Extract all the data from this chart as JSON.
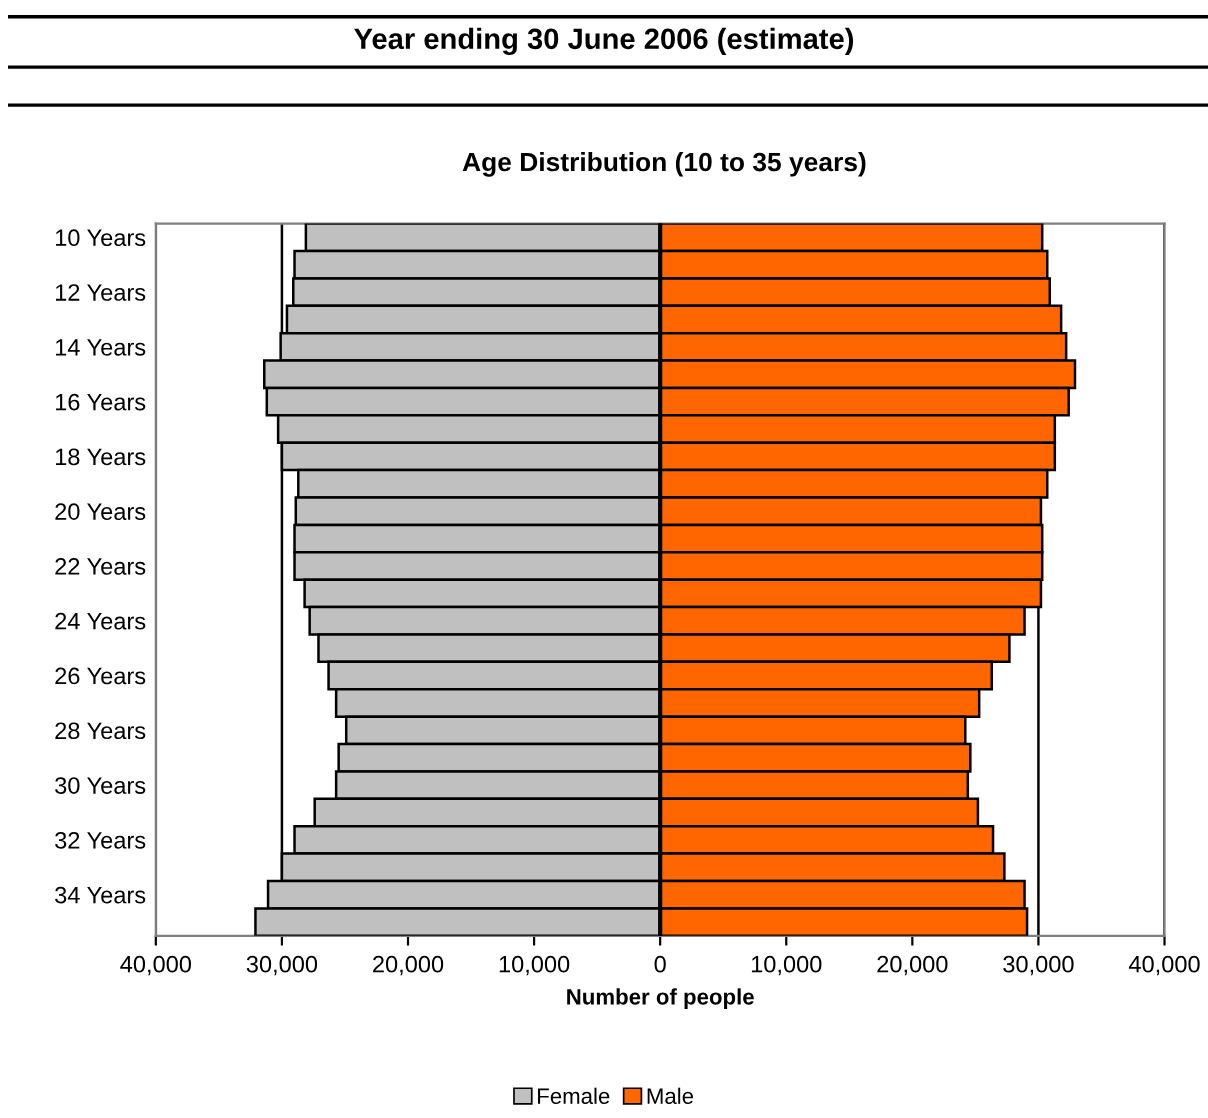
{
  "chart_data": {
    "type": "bar",
    "orientation": "horizontal",
    "stacked": true,
    "title": "Year ending 30 June 2006 (estimate)",
    "subtitle": "Age Distribution (10 to 35 years)",
    "xlabel": "Number of people",
    "categories": [
      "10 Years",
      null,
      "12 Years",
      null,
      "14 Years",
      null,
      "16 Years",
      null,
      "18 Years",
      null,
      "20 Years",
      null,
      "22 Years",
      null,
      "24 Years",
      null,
      "26 Years",
      null,
      "28 Years",
      null,
      "30 Years",
      null,
      "32 Years",
      null,
      "34 Years",
      null
    ],
    "series": [
      {
        "name": "Female",
        "color": "#c0c0c0",
        "values": [
          -28100,
          -29000,
          -29100,
          -29600,
          -30100,
          -31400,
          -31200,
          -30300,
          -30000,
          -28700,
          -28900,
          -29000,
          -29000,
          -28200,
          -27800,
          -27100,
          -26300,
          -25700,
          -24900,
          -25500,
          -25700,
          -27400,
          -29000,
          -30000,
          -31100,
          -32100
        ]
      },
      {
        "name": "Male",
        "color": "#ff6600",
        "values": [
          30300,
          30700,
          30900,
          31800,
          32200,
          32900,
          32400,
          31300,
          31300,
          30700,
          30200,
          30300,
          30300,
          30200,
          28900,
          27700,
          26300,
          25300,
          24200,
          24600,
          24400,
          25200,
          26400,
          27300,
          28900,
          29100
        ]
      }
    ],
    "xlim": [
      -40000,
      40000
    ],
    "xticks": [
      {
        "value": -40000,
        "label": "40,000"
      },
      {
        "value": -30000,
        "label": "30,000"
      },
      {
        "value": -20000,
        "label": "20,000"
      },
      {
        "value": -10000,
        "label": "10,000"
      },
      0,
      {
        "value": 10000,
        "label": "10,000"
      },
      {
        "value": 20000,
        "label": "20,000"
      },
      {
        "value": 30000,
        "label": "30,000"
      },
      {
        "value": 40000,
        "label": "40,000"
      }
    ],
    "grid": "x",
    "legend": "bottom"
  }
}
